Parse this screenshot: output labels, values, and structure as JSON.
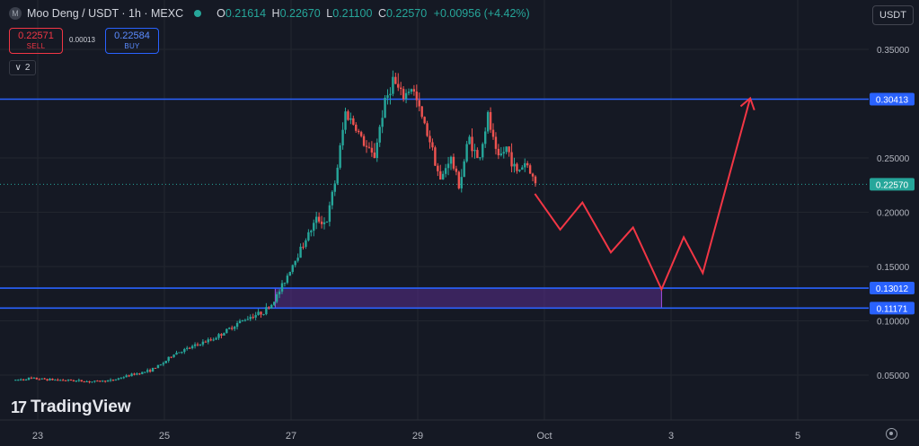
{
  "header": {
    "symbol": "Moo Deng / USDT · 1h · MEXC",
    "logo_letter": "M",
    "open_key": "O",
    "open": "0.21614",
    "high_key": "H",
    "high": "0.22670",
    "low_key": "L",
    "low": "0.21100",
    "close_key": "C",
    "close": "0.22570",
    "change": "+0.00956 (+4.42%)"
  },
  "trade": {
    "sell_price": "0.22571",
    "sell_label": "SELL",
    "spread": "0.00013",
    "buy_price": "0.22584",
    "buy_label": "BUY"
  },
  "indicators_toggle": {
    "icon": "chevron-down-icon",
    "count": "2"
  },
  "currency": "USDT",
  "branding": {
    "logo_text": "TradingView"
  },
  "colors": {
    "background": "#151924",
    "up": "#26a69a",
    "down": "#ef5350",
    "level_line": "#2962ff",
    "zone_fill": "#5a2e8c",
    "projection": "#f23645"
  },
  "chart_data": {
    "type": "candlestick",
    "symbol": "Moo Deng / USDT",
    "timeframe": "1h",
    "exchange": "MEXC",
    "ylim": [
      0.005,
      0.355
    ],
    "y_ticks": [
      "0.35000",
      "0.25000",
      "0.20000",
      "0.15000",
      "0.10000",
      "0.05000"
    ],
    "x_ticks": [
      {
        "label": "23",
        "day": 23
      },
      {
        "label": "25",
        "day": 25
      },
      {
        "label": "27",
        "day": 27
      },
      {
        "label": "29",
        "day": 29
      },
      {
        "label": "Oct",
        "day": 31
      },
      {
        "label": "3",
        "day": 33
      },
      {
        "label": "5",
        "day": 35
      }
    ],
    "price_trace": [
      [
        22.65,
        0.045
      ],
      [
        22.9,
        0.047
      ],
      [
        23.2,
        0.046
      ],
      [
        23.6,
        0.045
      ],
      [
        23.9,
        0.044
      ],
      [
        24.2,
        0.045
      ],
      [
        24.5,
        0.05
      ],
      [
        24.8,
        0.054
      ],
      [
        25.0,
        0.06
      ],
      [
        25.2,
        0.07
      ],
      [
        25.4,
        0.074
      ],
      [
        25.6,
        0.079
      ],
      [
        25.8,
        0.083
      ],
      [
        26.0,
        0.09
      ],
      [
        26.2,
        0.098
      ],
      [
        26.4,
        0.104
      ],
      [
        26.6,
        0.108
      ],
      [
        26.75,
        0.116
      ],
      [
        26.9,
        0.132
      ],
      [
        27.1,
        0.156
      ],
      [
        27.3,
        0.178
      ],
      [
        27.45,
        0.194
      ],
      [
        27.6,
        0.19
      ],
      [
        27.75,
        0.232
      ],
      [
        27.9,
        0.292
      ],
      [
        28.05,
        0.28
      ],
      [
        28.2,
        0.262
      ],
      [
        28.35,
        0.25
      ],
      [
        28.5,
        0.296
      ],
      [
        28.65,
        0.322
      ],
      [
        28.8,
        0.305
      ],
      [
        28.95,
        0.316
      ],
      [
        29.1,
        0.288
      ],
      [
        29.25,
        0.264
      ],
      [
        29.4,
        0.228
      ],
      [
        29.55,
        0.252
      ],
      [
        29.7,
        0.224
      ],
      [
        29.85,
        0.27
      ],
      [
        30.0,
        0.246
      ],
      [
        30.15,
        0.288
      ],
      [
        30.3,
        0.248
      ],
      [
        30.45,
        0.26
      ],
      [
        30.6,
        0.236
      ],
      [
        30.75,
        0.247
      ],
      [
        30.9,
        0.226
      ]
    ],
    "current_price": 0.2257,
    "price_labels": [
      {
        "text": "0.30413",
        "value": 0.30413
      },
      {
        "text": "0.22570",
        "value": 0.2257,
        "kind": "current"
      },
      {
        "text": "0.13012",
        "value": 0.13012
      },
      {
        "text": "0.11171",
        "value": 0.11171
      }
    ],
    "horizontal_levels": [
      0.30413,
      0.13012,
      0.11171
    ],
    "zone": {
      "from_day": 26.75,
      "to_day": 32.85,
      "low": 0.11171,
      "high": 0.13012
    },
    "projection_path": [
      [
        30.85,
        0.217
      ],
      [
        31.25,
        0.184
      ],
      [
        31.6,
        0.209
      ],
      [
        32.05,
        0.163
      ],
      [
        32.4,
        0.186
      ],
      [
        32.85,
        0.129
      ],
      [
        33.2,
        0.177
      ],
      [
        33.5,
        0.144
      ],
      [
        34.25,
        0.305
      ]
    ]
  }
}
